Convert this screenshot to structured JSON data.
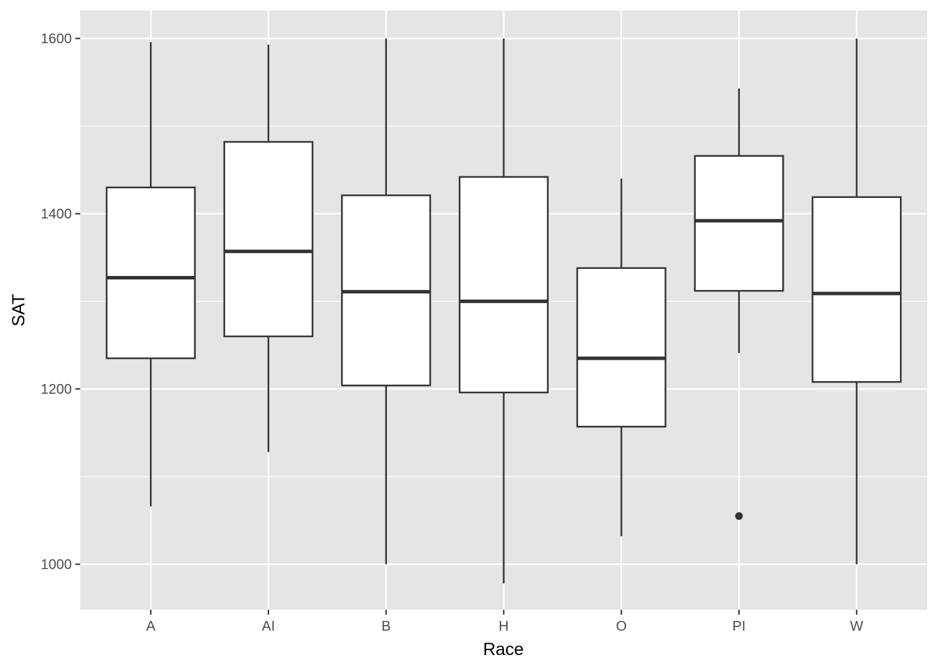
{
  "chart_data": {
    "type": "boxplot",
    "title": "",
    "xlabel": "Race",
    "ylabel": "SAT",
    "ylim": [
      948,
      1632
    ],
    "yticks": [
      1000,
      1200,
      1400,
      1600
    ],
    "yminor": [
      1100,
      1300,
      1500
    ],
    "grid": true,
    "legend": "none",
    "colors": {
      "panel": "#e5e5e5",
      "grid": "#ffffff",
      "box_fill": "#ffffff",
      "box_line": "#333333",
      "outlier": "#333333"
    },
    "categories": [
      "A",
      "AI",
      "B",
      "H",
      "O",
      "PI",
      "W"
    ],
    "boxes": [
      {
        "category": "A",
        "lower": 1066,
        "q1": 1235,
        "median": 1327,
        "q3": 1430,
        "upper": 1596,
        "outliers": []
      },
      {
        "category": "AI",
        "lower": 1128,
        "q1": 1260,
        "median": 1357,
        "q3": 1482,
        "upper": 1593,
        "outliers": []
      },
      {
        "category": "B",
        "lower": 1000,
        "q1": 1204,
        "median": 1311,
        "q3": 1421,
        "upper": 1600,
        "outliers": []
      },
      {
        "category": "H",
        "lower": 978,
        "q1": 1196,
        "median": 1300,
        "q3": 1442,
        "upper": 1600,
        "outliers": []
      },
      {
        "category": "O",
        "lower": 1032,
        "q1": 1157,
        "median": 1235,
        "q3": 1338,
        "upper": 1440,
        "outliers": []
      },
      {
        "category": "PI",
        "lower": 1241,
        "q1": 1312,
        "median": 1392,
        "q3": 1466,
        "upper": 1543,
        "outliers": [
          1055
        ]
      },
      {
        "category": "W",
        "lower": 1000,
        "q1": 1208,
        "median": 1309,
        "q3": 1419,
        "upper": 1600,
        "outliers": []
      }
    ]
  }
}
